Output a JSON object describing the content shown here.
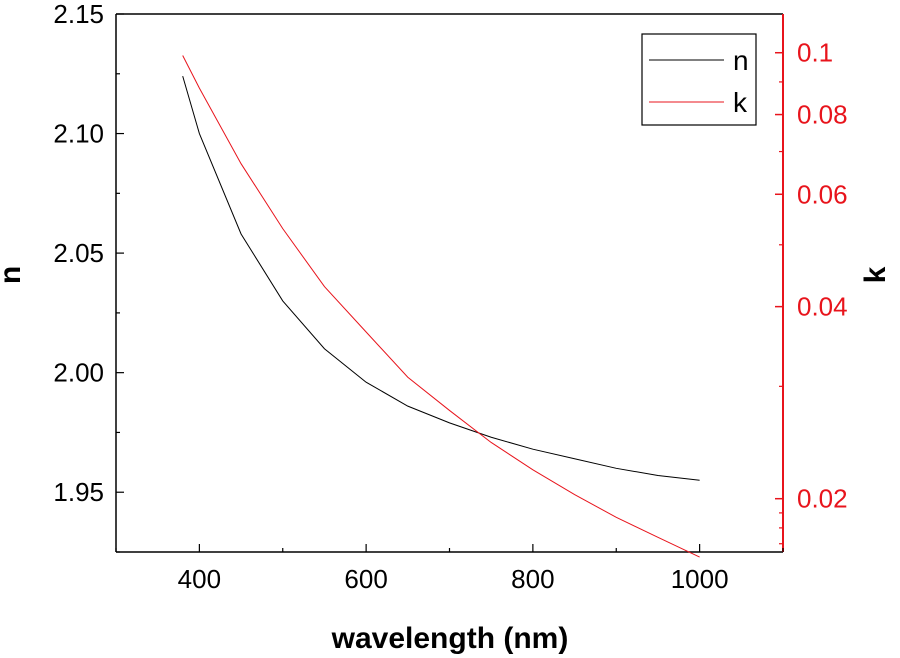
{
  "chart_data": {
    "type": "line",
    "xlabel": "wavelength (nm)",
    "ylabel_left": "n",
    "ylabel_right": "k",
    "xlim": [
      300,
      1100
    ],
    "ylim_left": [
      1.925,
      2.15
    ],
    "ylim_right": [
      0.0165,
      0.115
    ],
    "right_axis_scale": "log",
    "grid": false,
    "legend_placement": "top-right",
    "x_ticks": [
      400,
      600,
      800,
      1000
    ],
    "x_tick_labels": [
      "400",
      "600",
      "800",
      "1000"
    ],
    "y_left_ticks": [
      1.95,
      2.0,
      2.05,
      2.1,
      2.15
    ],
    "y_left_tick_labels": [
      "1.95",
      "2.00",
      "2.05",
      "2.10",
      "2.15"
    ],
    "y_right_ticks": [
      0.02,
      0.04,
      0.06,
      0.08,
      0.1
    ],
    "y_right_tick_labels": [
      "0.02",
      "0.04",
      "0.06",
      "0.08",
      "0.1"
    ],
    "series": [
      {
        "name": "n",
        "axis": "left",
        "color": "#000000",
        "x": [
          380,
          400,
          450,
          500,
          550,
          600,
          650,
          700,
          750,
          800,
          850,
          900,
          950,
          1000
        ],
        "y": [
          2.124,
          2.1,
          2.058,
          2.03,
          2.01,
          1.996,
          1.986,
          1.979,
          1.973,
          1.968,
          1.964,
          1.96,
          1.957,
          1.955
        ]
      },
      {
        "name": "k",
        "axis": "right",
        "color": "#e8141c",
        "x": [
          380,
          400,
          450,
          500,
          550,
          600,
          650,
          700,
          750,
          800,
          850,
          900,
          950,
          1000
        ],
        "y": [
          0.099,
          0.088,
          0.067,
          0.053,
          0.043,
          0.0365,
          0.031,
          0.0275,
          0.0245,
          0.0222,
          0.0203,
          0.0187,
          0.0174,
          0.0162
        ]
      }
    ]
  },
  "colors": {
    "left_axis": "#000000",
    "right_axis": "#e8141c"
  }
}
